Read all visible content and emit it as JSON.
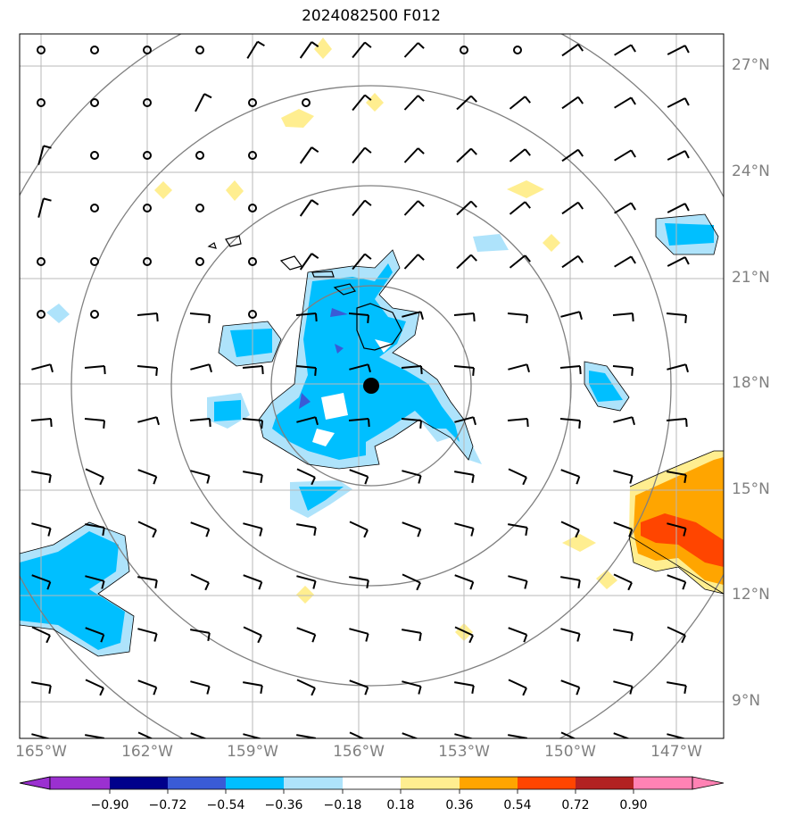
{
  "title": "2024082500 F012",
  "lat_labels": [
    "27°N",
    "24°N",
    "21°N",
    "18°N",
    "15°N",
    "12°N",
    "9°N"
  ],
  "lon_labels": [
    "165°W",
    "162°W",
    "159°W",
    "156°W",
    "153°W",
    "150°W",
    "147°W"
  ],
  "colorbar": {
    "colors": [
      "#9b30d0",
      "#00008b",
      "#3a5bd6",
      "#00bfff",
      "#aee3fb",
      "#ffffff",
      "#ffee90",
      "#ffa500",
      "#ff4500",
      "#b22222",
      "#ff82b4"
    ],
    "ticks": [
      "−0.90",
      "−0.72",
      "−0.54",
      "−0.36",
      "−0.18",
      "0.18",
      "0.36",
      "0.54",
      "0.72",
      "0.90"
    ]
  },
  "storm_center": {
    "lat": 18.0,
    "lon": -155.7
  },
  "range_rings": [
    "ring-1",
    "ring-2",
    "ring-3",
    "ring-4"
  ],
  "colors": {
    "grid": "#b8b8b8",
    "ring": "#808080",
    "axis_label": "#808080"
  }
}
